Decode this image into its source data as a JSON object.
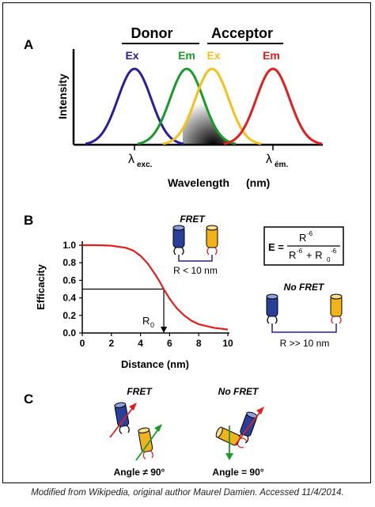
{
  "panel_a": {
    "label": "A",
    "donor_label": "Donor",
    "acceptor_label": "Acceptor",
    "curves": [
      {
        "label": "Ex",
        "color": "#2a1e9b",
        "peak_nm": 170
      },
      {
        "label": "Em",
        "color": "#1a9a2a",
        "peak_nm": 236
      },
      {
        "label": "Ex",
        "color": "#f2c21a",
        "peak_nm": 268
      },
      {
        "label": "Em",
        "color": "#e02020",
        "peak_nm": 345
      }
    ],
    "y_label": "Intensity",
    "lambda_exc": "λ",
    "lambda_exc_sub": "exc.",
    "lambda_em": "λ",
    "lambda_em_sub": "ém.",
    "x_label": "Wavelength",
    "x_unit": "(nm)"
  },
  "panel_b": {
    "label": "B",
    "fret_label": "FRET",
    "no_fret_label": "No FRET",
    "r_less": "R < 10 nm",
    "r_greater": "R >> 10 nm",
    "equation": {
      "lhs": "E =",
      "num": "R",
      "num_exp": "-6",
      "den_a": "R",
      "den_a_exp": "-6",
      "den_plus": "+ R",
      "den_sub": "0",
      "den_b_exp": "-6"
    },
    "r0_label": "R",
    "r0_sub": "0"
  },
  "panel_c": {
    "label": "C",
    "fret_label": "FRET",
    "no_fret_label": "No FRET",
    "angle_left": "Angle ≠ 90°",
    "angle_right": "Angle = 90°"
  },
  "chart_data": {
    "type": "line",
    "title": "",
    "xlabel": "Distance (nm)",
    "ylabel": "Efficacity",
    "xlim": [
      0,
      10
    ],
    "ylim": [
      0,
      1.0
    ],
    "x_ticks": [
      "0",
      "2",
      "4",
      "6",
      "8",
      "10"
    ],
    "y_ticks": [
      "0.0",
      "0.2",
      "0.4",
      "0.6",
      "0.8",
      "1.0"
    ],
    "R0": 5.6,
    "series": [
      {
        "color": "#e02020",
        "x": [
          0,
          1,
          2,
          3,
          3.5,
          4,
          4.5,
          5,
          5.3,
          5.6,
          6,
          6.5,
          7,
          7.5,
          8,
          9,
          10
        ],
        "y": [
          1.0,
          1.0,
          0.995,
          0.97,
          0.94,
          0.88,
          0.79,
          0.67,
          0.59,
          0.5,
          0.39,
          0.28,
          0.2,
          0.14,
          0.1,
          0.06,
          0.04
        ]
      }
    ],
    "guide_y": 0.5
  },
  "caption": "Modified from Wikipedia, original author Maurel Damien. Accessed 11/4/2014."
}
